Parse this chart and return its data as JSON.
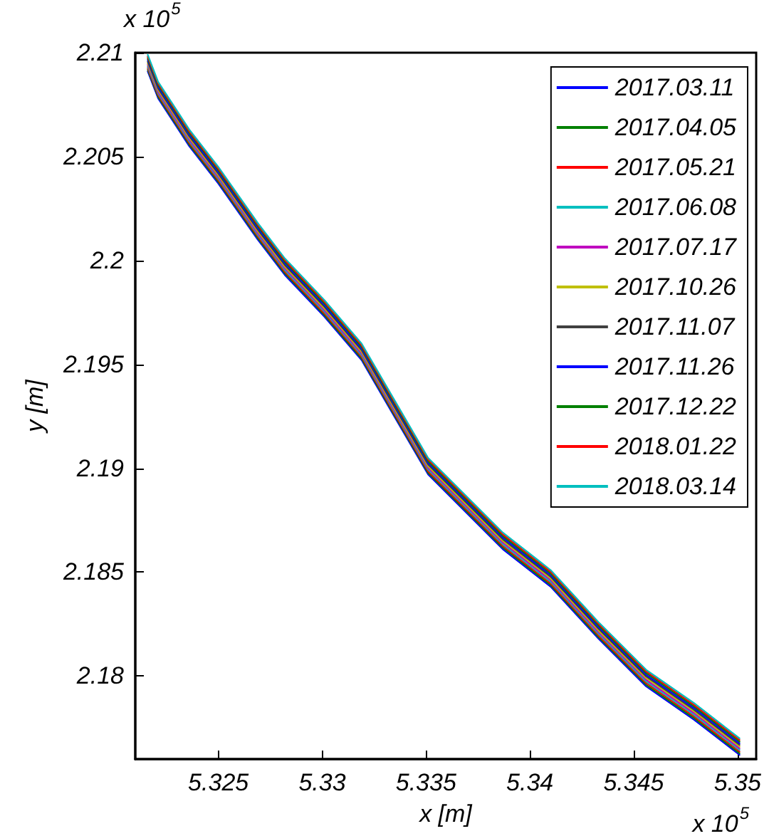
{
  "chart_data": {
    "type": "line",
    "xlabel": "x [m]",
    "ylabel": "y [m]",
    "annotations": [
      "x 10$^{5}$",
      "x 10$^{5}$"
    ],
    "x": [
      5.3216,
      5.3221,
      5.3236,
      5.325,
      5.3269,
      5.3282,
      5.3301,
      5.3319,
      5.3337,
      5.3351,
      5.3387,
      5.341,
      5.3433,
      5.3456,
      5.3479,
      5.3501
    ],
    "series": [
      {
        "name": "2017.03.11",
        "color": "#0000ff",
        "values": [
          2.2091,
          2.2078,
          2.2055,
          2.2037,
          2.201,
          2.1993,
          2.1973,
          2.1952,
          2.1921,
          2.1897,
          2.1861,
          2.1843,
          2.1818,
          2.1795,
          2.1779,
          2.1762
        ]
      },
      {
        "name": "2017.04.05",
        "color": "#008000",
        "values": [
          2.20918,
          2.20788,
          2.20558,
          2.20378,
          2.20108,
          2.19938,
          2.19738,
          2.19528,
          2.19218,
          2.18978,
          2.18618,
          2.18438,
          2.18188,
          2.17958,
          2.17798,
          2.17628
        ]
      },
      {
        "name": "2017.05.21",
        "color": "#ff0000",
        "values": [
          2.20926,
          2.20796,
          2.20566,
          2.20386,
          2.20116,
          2.19946,
          2.19746,
          2.19536,
          2.19226,
          2.18986,
          2.18626,
          2.18446,
          2.18196,
          2.17966,
          2.17806,
          2.17636
        ]
      },
      {
        "name": "2017.06.08",
        "color": "#00bfbf",
        "values": [
          2.20934,
          2.20804,
          2.20574,
          2.20394,
          2.20124,
          2.19954,
          2.19754,
          2.19544,
          2.19234,
          2.18994,
          2.18634,
          2.18454,
          2.18204,
          2.17974,
          2.17814,
          2.17644
        ]
      },
      {
        "name": "2017.07.17",
        "color": "#bf00bf",
        "values": [
          2.20942,
          2.20812,
          2.20582,
          2.20402,
          2.20132,
          2.19962,
          2.19762,
          2.19552,
          2.19242,
          2.19002,
          2.18642,
          2.18462,
          2.18212,
          2.17982,
          2.17822,
          2.17652
        ]
      },
      {
        "name": "2017.10.26",
        "color": "#bfbf00",
        "values": [
          2.2095,
          2.2082,
          2.2059,
          2.2041,
          2.2014,
          2.1997,
          2.1977,
          2.1956,
          2.1925,
          2.1901,
          2.1865,
          2.1847,
          2.1822,
          2.1799,
          2.1783,
          2.1766
        ]
      },
      {
        "name": "2017.11.07",
        "color": "#404040",
        "values": [
          2.20958,
          2.20828,
          2.20598,
          2.20418,
          2.20148,
          2.19978,
          2.19778,
          2.19568,
          2.19258,
          2.19018,
          2.18658,
          2.18478,
          2.18228,
          2.17998,
          2.17838,
          2.17668
        ]
      },
      {
        "name": "2017.11.26",
        "color": "#0000ff",
        "values": [
          2.20966,
          2.20836,
          2.20606,
          2.20426,
          2.20156,
          2.19986,
          2.19786,
          2.19576,
          2.19266,
          2.19026,
          2.18666,
          2.18486,
          2.18236,
          2.18006,
          2.17846,
          2.17676
        ]
      },
      {
        "name": "2017.12.22",
        "color": "#008000",
        "values": [
          2.20974,
          2.20844,
          2.20614,
          2.20434,
          2.20164,
          2.19994,
          2.19794,
          2.19584,
          2.19274,
          2.19034,
          2.18674,
          2.18494,
          2.18244,
          2.18014,
          2.17854,
          2.17684
        ]
      },
      {
        "name": "2018.01.22",
        "color": "#ff0000",
        "values": [
          2.20982,
          2.20852,
          2.20622,
          2.20442,
          2.20172,
          2.20002,
          2.19802,
          2.19592,
          2.19282,
          2.19042,
          2.18682,
          2.18502,
          2.18252,
          2.18022,
          2.17862,
          2.17692
        ]
      },
      {
        "name": "2018.03.14",
        "color": "#00bfbf",
        "values": [
          2.2099,
          2.2086,
          2.2063,
          2.2045,
          2.2018,
          2.2001,
          2.1981,
          2.196,
          2.1929,
          2.1905,
          2.1869,
          2.1851,
          2.1826,
          2.1803,
          2.1787,
          2.177
        ]
      }
    ],
    "xlim": [
      5.321,
      5.3509
    ],
    "xticks": [
      5.325,
      5.33,
      5.335,
      5.34,
      5.345,
      5.35
    ],
    "ylim": [
      2.176,
      2.21
    ],
    "yticks": [
      2.18,
      2.185,
      2.19,
      2.195,
      2.2,
      2.205,
      2.21
    ],
    "grid": false,
    "legend": "top right",
    "marker": "none",
    "line_style": "solid"
  }
}
